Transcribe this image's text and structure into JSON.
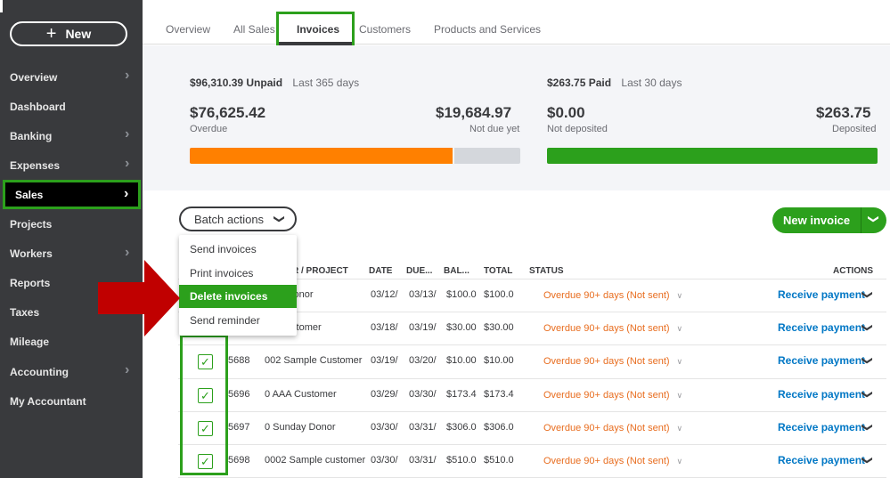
{
  "sidebar": {
    "new_label": "New",
    "items": [
      {
        "label": "Overview",
        "chevron": true
      },
      {
        "label": "Dashboard",
        "chevron": false
      },
      {
        "label": "Banking",
        "chevron": true
      },
      {
        "label": "Expenses",
        "chevron": true
      },
      {
        "label": "Sales",
        "chevron": true,
        "active": true
      },
      {
        "label": "Projects",
        "chevron": false
      },
      {
        "label": "Workers",
        "chevron": true
      },
      {
        "label": "Reports",
        "chevron": false
      },
      {
        "label": "Taxes",
        "chevron": false
      },
      {
        "label": "Mileage",
        "chevron": false
      },
      {
        "label": "Accounting",
        "chevron": true
      },
      {
        "label": "My Accountant",
        "chevron": false
      }
    ]
  },
  "tabs": {
    "items": [
      "Overview",
      "All Sales",
      "Invoices",
      "Customers",
      "Products and Services"
    ],
    "active": "Invoices"
  },
  "summary": {
    "unpaid_amount": "$96,310.39 Unpaid",
    "unpaid_period": "Last 365 days",
    "overdue_amount": "$76,625.42",
    "overdue_label": "Overdue",
    "not_due_amount": "$19,684.97",
    "not_due_label": "Not due yet",
    "overdue_fraction": 0.796,
    "paid_amount": "$263.75 Paid",
    "paid_period": "Last 30 days",
    "not_deposited_amount": "$0.00",
    "not_deposited_label": "Not deposited",
    "deposited_amount": "$263.75",
    "deposited_label": "Deposited",
    "colors": {
      "overdue": "#ff8000",
      "not_due": "#d4d7dc",
      "deposited": "#2ca01c"
    }
  },
  "toolbar": {
    "batch_actions_label": "Batch actions",
    "new_invoice_label": "New invoice"
  },
  "batch_menu": {
    "items": [
      "Send invoices",
      "Print invoices",
      "Delete invoices",
      "Send reminder"
    ],
    "highlighted": "Delete invoices"
  },
  "table": {
    "headers": {
      "customer": "MER / PROJECT",
      "date": "DATE",
      "due": "DUE...",
      "balance": "BAL...",
      "total": "TOTAL",
      "status": "STATUS",
      "actions": "ACTIONS"
    },
    "rows": [
      {
        "no": "",
        "customer": "y Donor",
        "date": "03/12/",
        "due": "03/13/",
        "balance": "$100.0",
        "total": "$100.0",
        "status": "Overdue 90+ days (Not sent)",
        "action": "Receive payment",
        "checked": false
      },
      {
        "no": "",
        "customer": "Customer",
        "date": "03/18/",
        "due": "03/19/",
        "balance": "$30.00",
        "total": "$30.00",
        "status": "Overdue 90+ days (Not sent)",
        "action": "Receive payment",
        "checked": false
      },
      {
        "no": "5688",
        "customer": "002 Sample Customer",
        "date": "03/19/",
        "due": "03/20/",
        "balance": "$10.00",
        "total": "$10.00",
        "status": "Overdue 90+ days (Not sent)",
        "action": "Receive payment",
        "checked": true
      },
      {
        "no": "5696",
        "customer": "0 AAA Customer",
        "date": "03/29/",
        "due": "03/30/",
        "balance": "$173.4",
        "total": "$173.4",
        "status": "Overdue 90+ days (Not sent)",
        "action": "Receive payment",
        "checked": true
      },
      {
        "no": "5697",
        "customer": "0 Sunday Donor",
        "date": "03/30/",
        "due": "03/31/",
        "balance": "$306.0",
        "total": "$306.0",
        "status": "Overdue 90+ days (Not sent)",
        "action": "Receive payment",
        "checked": true
      },
      {
        "no": "5698",
        "customer": "0002 Sample customer",
        "date": "03/30/",
        "due": "03/31/",
        "balance": "$510.0",
        "total": "$510.0",
        "status": "Overdue 90+ days (Not sent)",
        "action": "Receive payment",
        "checked": true
      }
    ]
  },
  "icons": {
    "plus": "plus-icon",
    "chevron_right": "chevron-right-icon",
    "chevron_down": "chevron-down-icon",
    "check": "check-icon",
    "arrow": "red-arrow-annotation"
  }
}
